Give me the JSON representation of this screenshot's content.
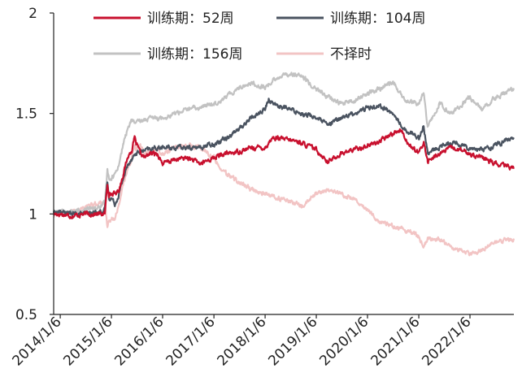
{
  "chart_data": {
    "type": "line",
    "title": "",
    "xlabel": "",
    "ylabel": "",
    "ylim": [
      0.5,
      2
    ],
    "yticks": [
      "0.5",
      "1",
      "1.5",
      "2"
    ],
    "xlim": [
      "2013-11-20",
      "2022-11-15"
    ],
    "xticks": [
      "2014/1/6",
      "2015/1/6",
      "2016/1/6",
      "2017/1/6",
      "2018/1/6",
      "2019/1/6",
      "2020/1/6",
      "2021/1/6",
      "2022/1/6"
    ],
    "grid": false,
    "legend_placement": "top",
    "series": [
      {
        "name": "训练期：52周",
        "color": "#c8102e",
        "points": [
          [
            "2013-11-20",
            1.0
          ],
          [
            "2014-01-06",
            1.0
          ],
          [
            "2014-04-01",
            0.99
          ],
          [
            "2014-07-01",
            1.0
          ],
          [
            "2014-10-01",
            1.0
          ],
          [
            "2014-11-20",
            1.0
          ],
          [
            "2014-12-08",
            1.15
          ],
          [
            "2014-12-20",
            1.1
          ],
          [
            "2015-01-06",
            1.1
          ],
          [
            "2015-02-01",
            1.1
          ],
          [
            "2015-03-01",
            1.12
          ],
          [
            "2015-04-01",
            1.2
          ],
          [
            "2015-05-01",
            1.28
          ],
          [
            "2015-06-01",
            1.32
          ],
          [
            "2015-06-20",
            1.38
          ],
          [
            "2015-07-01",
            1.35
          ],
          [
            "2015-08-01",
            1.3
          ],
          [
            "2015-09-01",
            1.28
          ],
          [
            "2015-10-01",
            1.3
          ],
          [
            "2015-12-01",
            1.3
          ],
          [
            "2016-01-06",
            1.25
          ],
          [
            "2016-04-01",
            1.27
          ],
          [
            "2016-07-01",
            1.28
          ],
          [
            "2016-10-01",
            1.25
          ],
          [
            "2017-01-06",
            1.28
          ],
          [
            "2017-04-01",
            1.3
          ],
          [
            "2017-07-01",
            1.31
          ],
          [
            "2017-10-01",
            1.33
          ],
          [
            "2018-01-06",
            1.33
          ],
          [
            "2018-03-01",
            1.38
          ],
          [
            "2018-06-01",
            1.37
          ],
          [
            "2018-09-01",
            1.36
          ],
          [
            "2019-01-06",
            1.32
          ],
          [
            "2019-04-01",
            1.26
          ],
          [
            "2019-07-01",
            1.3
          ],
          [
            "2019-10-01",
            1.32
          ],
          [
            "2020-01-06",
            1.34
          ],
          [
            "2020-04-01",
            1.36
          ],
          [
            "2020-07-01",
            1.4
          ],
          [
            "2020-09-01",
            1.42
          ],
          [
            "2020-11-01",
            1.34
          ],
          [
            "2021-01-06",
            1.3
          ],
          [
            "2021-02-10",
            1.36
          ],
          [
            "2021-03-10",
            1.26
          ],
          [
            "2021-06-01",
            1.3
          ],
          [
            "2021-09-01",
            1.33
          ],
          [
            "2022-01-06",
            1.3
          ],
          [
            "2022-04-01",
            1.28
          ],
          [
            "2022-07-01",
            1.25
          ],
          [
            "2022-11-15",
            1.23
          ]
        ]
      },
      {
        "name": "训练期：104周",
        "color": "#4a5360",
        "points": [
          [
            "2013-11-20",
            1.01
          ],
          [
            "2014-01-06",
            1.01
          ],
          [
            "2014-04-01",
            1.0
          ],
          [
            "2014-07-01",
            1.0
          ],
          [
            "2014-10-01",
            1.01
          ],
          [
            "2014-11-20",
            1.02
          ],
          [
            "2014-12-08",
            1.16
          ],
          [
            "2014-12-20",
            1.08
          ],
          [
            "2015-01-06",
            1.08
          ],
          [
            "2015-02-01",
            1.05
          ],
          [
            "2015-03-01",
            1.1
          ],
          [
            "2015-04-01",
            1.18
          ],
          [
            "2015-05-01",
            1.24
          ],
          [
            "2015-06-01",
            1.28
          ],
          [
            "2015-07-01",
            1.3
          ],
          [
            "2015-08-01",
            1.31
          ],
          [
            "2015-10-01",
            1.32
          ],
          [
            "2015-12-01",
            1.33
          ],
          [
            "2016-01-06",
            1.33
          ],
          [
            "2016-04-01",
            1.33
          ],
          [
            "2016-07-01",
            1.33
          ],
          [
            "2016-10-01",
            1.33
          ],
          [
            "2017-01-06",
            1.35
          ],
          [
            "2017-04-01",
            1.38
          ],
          [
            "2017-07-01",
            1.42
          ],
          [
            "2017-10-01",
            1.48
          ],
          [
            "2018-01-06",
            1.52
          ],
          [
            "2018-02-01",
            1.57
          ],
          [
            "2018-04-01",
            1.54
          ],
          [
            "2018-07-01",
            1.52
          ],
          [
            "2018-10-01",
            1.5
          ],
          [
            "2019-01-06",
            1.48
          ],
          [
            "2019-04-01",
            1.44
          ],
          [
            "2019-07-01",
            1.48
          ],
          [
            "2019-10-01",
            1.5
          ],
          [
            "2020-01-06",
            1.53
          ],
          [
            "2020-04-01",
            1.54
          ],
          [
            "2020-07-01",
            1.5
          ],
          [
            "2020-10-01",
            1.42
          ],
          [
            "2021-01-06",
            1.38
          ],
          [
            "2021-02-10",
            1.44
          ],
          [
            "2021-03-10",
            1.3
          ],
          [
            "2021-06-01",
            1.33
          ],
          [
            "2021-09-01",
            1.36
          ],
          [
            "2022-01-06",
            1.33
          ],
          [
            "2022-04-01",
            1.32
          ],
          [
            "2022-07-01",
            1.34
          ],
          [
            "2022-11-15",
            1.38
          ]
        ]
      },
      {
        "name": "训练期：156周",
        "color": "#c2c2c2",
        "points": [
          [
            "2013-11-20",
            1.01
          ],
          [
            "2014-01-06",
            1.01
          ],
          [
            "2014-04-01",
            1.01
          ],
          [
            "2014-07-01",
            1.02
          ],
          [
            "2014-10-01",
            1.03
          ],
          [
            "2014-11-20",
            1.05
          ],
          [
            "2014-12-08",
            1.22
          ],
          [
            "2014-12-20",
            1.18
          ],
          [
            "2015-01-06",
            1.18
          ],
          [
            "2015-02-01",
            1.2
          ],
          [
            "2015-03-01",
            1.25
          ],
          [
            "2015-04-01",
            1.35
          ],
          [
            "2015-05-01",
            1.42
          ],
          [
            "2015-06-01",
            1.47
          ],
          [
            "2015-07-01",
            1.45
          ],
          [
            "2015-09-01",
            1.47
          ],
          [
            "2015-12-01",
            1.48
          ],
          [
            "2016-01-06",
            1.48
          ],
          [
            "2016-04-01",
            1.5
          ],
          [
            "2016-07-01",
            1.52
          ],
          [
            "2016-10-01",
            1.53
          ],
          [
            "2017-01-06",
            1.55
          ],
          [
            "2017-04-01",
            1.58
          ],
          [
            "2017-07-01",
            1.63
          ],
          [
            "2017-10-01",
            1.65
          ],
          [
            "2018-01-06",
            1.63
          ],
          [
            "2018-04-01",
            1.68
          ],
          [
            "2018-07-01",
            1.7
          ],
          [
            "2018-10-01",
            1.68
          ],
          [
            "2019-01-06",
            1.62
          ],
          [
            "2019-04-01",
            1.58
          ],
          [
            "2019-07-01",
            1.55
          ],
          [
            "2019-10-01",
            1.56
          ],
          [
            "2020-01-06",
            1.6
          ],
          [
            "2020-04-01",
            1.62
          ],
          [
            "2020-07-01",
            1.66
          ],
          [
            "2020-10-01",
            1.56
          ],
          [
            "2021-01-06",
            1.55
          ],
          [
            "2021-02-10",
            1.6
          ],
          [
            "2021-03-10",
            1.43
          ],
          [
            "2021-06-01",
            1.55
          ],
          [
            "2021-09-01",
            1.5
          ],
          [
            "2022-01-06",
            1.58
          ],
          [
            "2022-04-01",
            1.52
          ],
          [
            "2022-07-01",
            1.58
          ],
          [
            "2022-11-15",
            1.62
          ]
        ]
      },
      {
        "name": "不择时",
        "color": "#f2c4c4",
        "points": [
          [
            "2013-11-20",
            0.99
          ],
          [
            "2014-01-06",
            1.0
          ],
          [
            "2014-04-01",
            1.01
          ],
          [
            "2014-07-01",
            1.03
          ],
          [
            "2014-10-01",
            1.05
          ],
          [
            "2014-11-20",
            1.06
          ],
          [
            "2014-12-08",
            0.93
          ],
          [
            "2014-12-20",
            0.97
          ],
          [
            "2015-01-06",
            0.97
          ],
          [
            "2015-02-01",
            0.98
          ],
          [
            "2015-03-01",
            1.05
          ],
          [
            "2015-04-01",
            1.15
          ],
          [
            "2015-05-01",
            1.22
          ],
          [
            "2015-06-01",
            1.28
          ],
          [
            "2015-06-20",
            1.35
          ],
          [
            "2015-07-01",
            1.32
          ],
          [
            "2015-08-01",
            1.34
          ],
          [
            "2015-09-01",
            1.3
          ],
          [
            "2015-12-01",
            1.32
          ],
          [
            "2016-01-06",
            1.3
          ],
          [
            "2016-04-01",
            1.33
          ],
          [
            "2016-07-01",
            1.34
          ],
          [
            "2016-10-01",
            1.33
          ],
          [
            "2017-01-06",
            1.28
          ],
          [
            "2017-04-01",
            1.2
          ],
          [
            "2017-07-01",
            1.16
          ],
          [
            "2017-10-01",
            1.12
          ],
          [
            "2018-01-06",
            1.1
          ],
          [
            "2018-04-01",
            1.08
          ],
          [
            "2018-07-01",
            1.06
          ],
          [
            "2018-10-01",
            1.04
          ],
          [
            "2019-01-06",
            1.1
          ],
          [
            "2019-04-01",
            1.12
          ],
          [
            "2019-07-01",
            1.1
          ],
          [
            "2019-10-01",
            1.08
          ],
          [
            "2020-01-06",
            1.02
          ],
          [
            "2020-04-01",
            0.96
          ],
          [
            "2020-07-01",
            0.94
          ],
          [
            "2020-10-01",
            0.92
          ],
          [
            "2021-01-06",
            0.89
          ],
          [
            "2021-02-10",
            0.83
          ],
          [
            "2021-03-10",
            0.88
          ],
          [
            "2021-06-01",
            0.87
          ],
          [
            "2021-09-01",
            0.83
          ],
          [
            "2022-01-06",
            0.8
          ],
          [
            "2022-04-01",
            0.82
          ],
          [
            "2022-07-01",
            0.86
          ],
          [
            "2022-11-15",
            0.87
          ]
        ]
      }
    ]
  }
}
